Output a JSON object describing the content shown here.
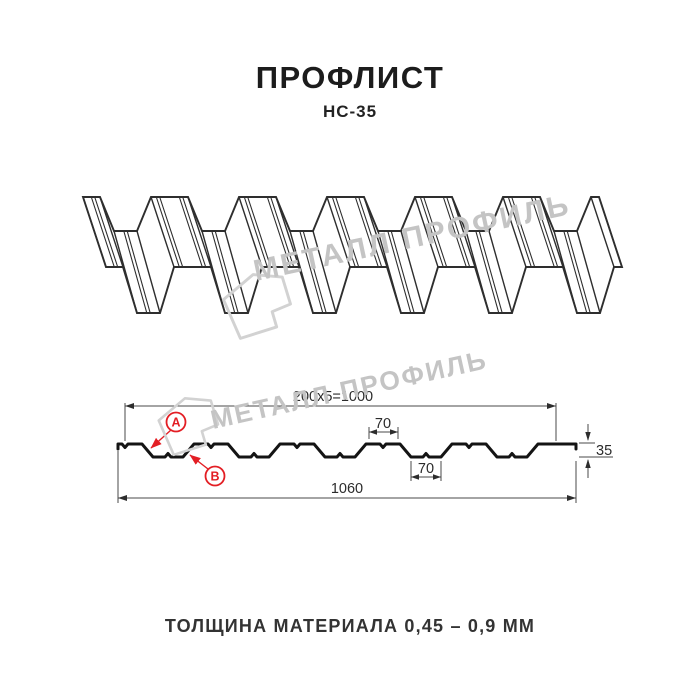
{
  "header": {
    "title": "ПРОФЛИСТ",
    "subtitle": "НС-35"
  },
  "footer": {
    "thickness_note": "ТОЛЩИНА МАТЕРИАЛА 0,45 – 0,9 ММ"
  },
  "watermark": {
    "brand": "МЕТАЛЛ ПРОФИЛЬ",
    "color": "#c4c4c4"
  },
  "section_diagram": {
    "dim_top": "200x5=1000",
    "dim_rib_top": "70",
    "dim_rib_bottom": "70",
    "dim_height": "35",
    "dim_total": "1060",
    "label_a": "А",
    "label_b": "В",
    "accent_color": "#e31e24",
    "profile_height_mm": 35,
    "useful_width_mm": 1000,
    "full_width_mm": 1060,
    "rib_pitch_mm": 200,
    "rib_top_mm": 70,
    "rib_bottom_mm": 70
  }
}
